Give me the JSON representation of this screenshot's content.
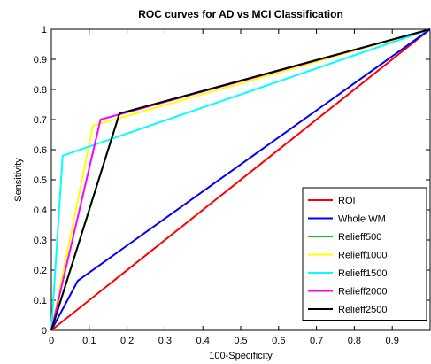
{
  "chart_data": {
    "type": "line",
    "title": "ROC curves for AD vs MCI Classification",
    "xlabel": "100-Specificity",
    "ylabel": "Sensitivity",
    "xlim": [
      0,
      1
    ],
    "ylim": [
      0,
      1
    ],
    "x_ticks": [
      "0",
      "0.1",
      "0.2",
      "0.3",
      "0.4",
      "0.5",
      "0.6",
      "0.7",
      "0.8",
      "0.9"
    ],
    "y_ticks": [
      "0",
      "0.1",
      "0.2",
      "0.3",
      "0.4",
      "0.5",
      "0.6",
      "0.7",
      "0.8",
      "0.9",
      "1"
    ],
    "grid": false,
    "legend_position": "bottom-right",
    "series": [
      {
        "name": "ROI",
        "color": "#ff0000",
        "points": [
          [
            0,
            0
          ],
          [
            1,
            1
          ]
        ]
      },
      {
        "name": "Whole WM",
        "color": "#0000ff",
        "points": [
          [
            0,
            0
          ],
          [
            0.07,
            0.165
          ],
          [
            1,
            1
          ]
        ]
      },
      {
        "name": "Relieff500",
        "color": "#00cc00",
        "points": [
          [
            0,
            0
          ],
          [
            0.18,
            0.72
          ],
          [
            1,
            1
          ]
        ]
      },
      {
        "name": "Relieff1000",
        "color": "#ffff00",
        "points": [
          [
            0,
            0
          ],
          [
            0.11,
            0.68
          ],
          [
            1,
            1
          ]
        ]
      },
      {
        "name": "Relieff1500",
        "color": "#00ffff",
        "points": [
          [
            0,
            0
          ],
          [
            0.03,
            0.58
          ],
          [
            1,
            1
          ]
        ]
      },
      {
        "name": "Relieff2000",
        "color": "#ff00ff",
        "points": [
          [
            0,
            0
          ],
          [
            0.13,
            0.7
          ],
          [
            1,
            1
          ]
        ]
      },
      {
        "name": "Relieff2500",
        "color": "#000000",
        "points": [
          [
            0,
            0
          ],
          [
            0.18,
            0.72
          ],
          [
            1,
            1
          ]
        ]
      }
    ]
  }
}
